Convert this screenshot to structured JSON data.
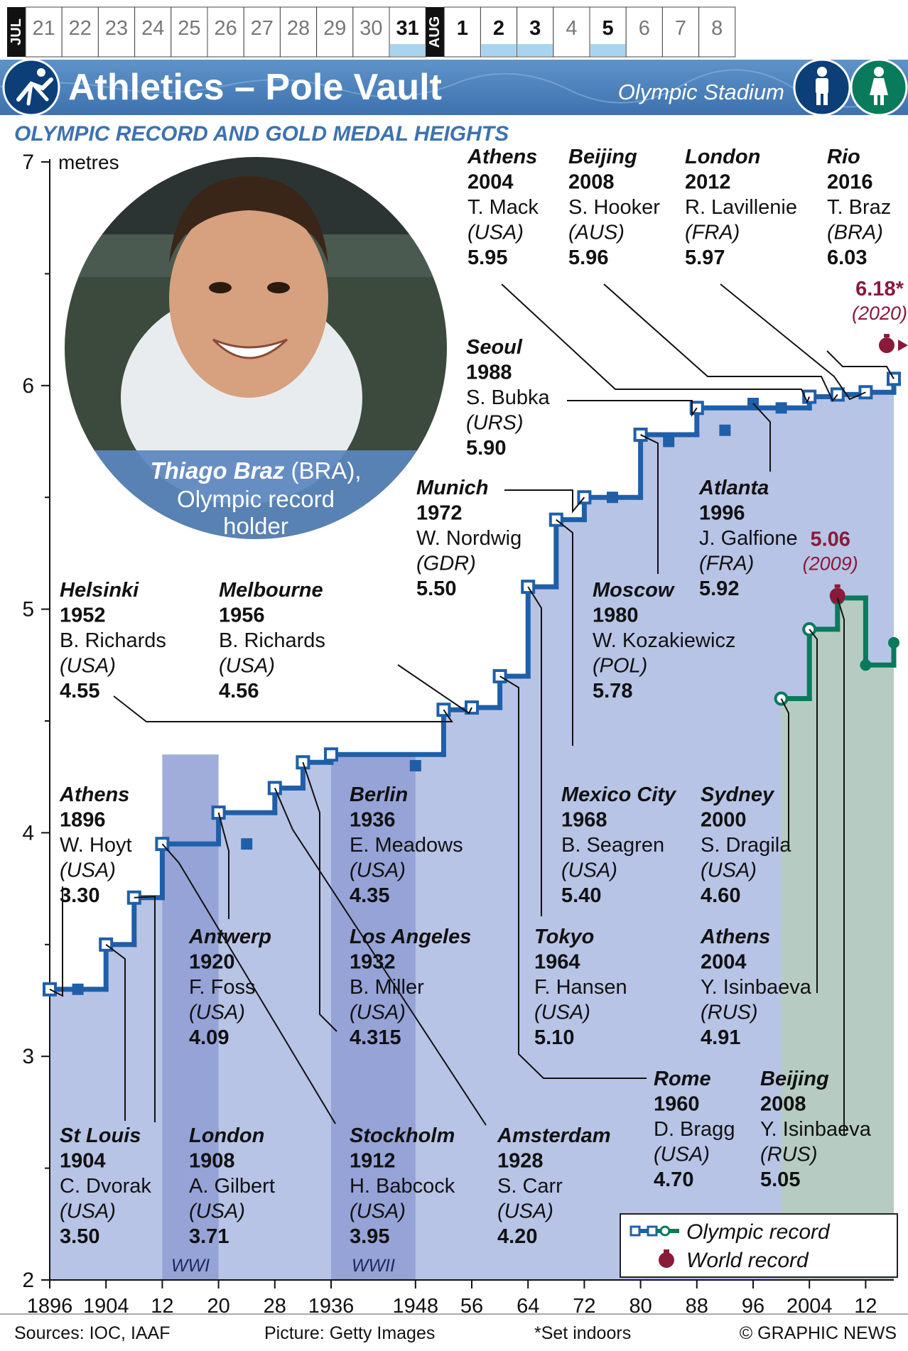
{
  "calendar": {
    "month1": "JUL",
    "month2": "AUG",
    "days1": [
      {
        "label": "21",
        "bold": false,
        "bar": false
      },
      {
        "label": "22",
        "bold": false,
        "bar": false
      },
      {
        "label": "23",
        "bold": false,
        "bar": false
      },
      {
        "label": "24",
        "bold": false,
        "bar": false
      },
      {
        "label": "25",
        "bold": false,
        "bar": false
      },
      {
        "label": "26",
        "bold": false,
        "bar": false
      },
      {
        "label": "27",
        "bold": false,
        "bar": false
      },
      {
        "label": "28",
        "bold": false,
        "bar": false
      },
      {
        "label": "29",
        "bold": false,
        "bar": false
      },
      {
        "label": "30",
        "bold": false,
        "bar": false
      },
      {
        "label": "31",
        "bold": true,
        "bar": true
      }
    ],
    "days2": [
      {
        "label": "1",
        "bold": true,
        "bar": false
      },
      {
        "label": "2",
        "bold": true,
        "bar": true
      },
      {
        "label": "3",
        "bold": true,
        "bar": true
      },
      {
        "label": "4",
        "bold": false,
        "bar": false
      },
      {
        "label": "5",
        "bold": true,
        "bar": true
      },
      {
        "label": "6",
        "bold": false,
        "bar": false
      },
      {
        "label": "7",
        "bold": false,
        "bar": false
      },
      {
        "label": "8",
        "bold": false,
        "bar": false
      }
    ]
  },
  "header": {
    "title": "Athletics – Pole Vault",
    "venue": "Olympic Stadium",
    "sport_icon": "pole-vault-pictogram-icon",
    "men_icon": "man-icon",
    "women_icon": "woman-icon"
  },
  "photo": {
    "caption_name": "Thiago Braz",
    "caption_country": " (BRA),",
    "caption_line2": "Olympic record",
    "caption_line3": "holder"
  },
  "chart_data": {
    "type": "line",
    "title": "OLYMPIC RECORD AND GOLD MEDAL HEIGHTS",
    "ylabel": "metres",
    "ylim": [
      2,
      7
    ],
    "xlim": [
      1896,
      2016
    ],
    "yticks": [
      "2",
      "3",
      "4",
      "5",
      "6",
      "7"
    ],
    "xtick_labels": [
      {
        "x": 1896,
        "label": "1896"
      },
      {
        "x": 1904,
        "label": "1904"
      },
      {
        "x": 1912,
        "label": "12"
      },
      {
        "x": 1920,
        "label": "20"
      },
      {
        "x": 1928,
        "label": "28"
      },
      {
        "x": 1936,
        "label": "1936"
      },
      {
        "x": 1948,
        "label": "1948"
      },
      {
        "x": 1956,
        "label": "56"
      },
      {
        "x": 1964,
        "label": "64"
      },
      {
        "x": 1972,
        "label": "72"
      },
      {
        "x": 1980,
        "label": "80"
      },
      {
        "x": 1988,
        "label": "88"
      },
      {
        "x": 1996,
        "label": "96"
      },
      {
        "x": 2004,
        "label": "2004"
      },
      {
        "x": 2012,
        "label": "12"
      }
    ],
    "war_bands": [
      {
        "label": "WWI",
        "from": 1912,
        "to": 1920
      },
      {
        "label": "WWII",
        "from": 1936,
        "to": 1948
      }
    ],
    "series": [
      {
        "name": "Olympic record",
        "color": "#1f5fa8",
        "record_years": [
          1896,
          1904,
          1908,
          1912,
          1920,
          1928,
          1932,
          1936,
          1952,
          1956,
          1960,
          1964,
          1968,
          1972,
          1980,
          1988,
          2000,
          2004,
          2008,
          2012,
          2016
        ],
        "record_values": [
          3.3,
          3.5,
          3.71,
          3.95,
          4.09,
          4.2,
          4.315,
          4.35,
          4.55,
          4.56,
          4.7,
          5.1,
          5.4,
          5.5,
          5.78,
          5.9,
          5.9,
          5.95,
          5.96,
          5.97,
          6.03
        ],
        "gold_years": [
          1900,
          1924,
          1948,
          1976,
          1984,
          1992,
          1996,
          2000
        ],
        "gold_values": [
          3.3,
          3.95,
          4.3,
          5.5,
          5.75,
          5.8,
          5.92,
          5.9
        ],
        "dotted_segments": [
          [
            1912,
            1920
          ],
          [
            1936,
            1948
          ]
        ]
      },
      {
        "name": "Olympic record",
        "color": "#0a7a5c",
        "record_years": [
          2000,
          2004,
          2008
        ],
        "record_values": [
          4.6,
          4.91,
          5.05
        ],
        "gold_years": [
          2012,
          2016
        ],
        "gold_values": [
          4.75,
          4.85
        ]
      }
    ],
    "world_records": [
      {
        "x": 2016,
        "y": 6.18,
        "label": "6.18*",
        "sublabel": "(2020)",
        "color": "#8a1a3a"
      },
      {
        "x": 2009,
        "y": 5.06,
        "label": "5.06",
        "sublabel": "(2009)",
        "color": "#8a1a3a"
      }
    ],
    "annotations": [
      {
        "city": "Athens",
        "year": "1896",
        "name": "W. Hoyt",
        "country": "(USA)",
        "height": "3.30",
        "x": 1896,
        "y": 3.3
      },
      {
        "city": "St Louis",
        "year": "1904",
        "name": "C. Dvorak",
        "country": "(USA)",
        "height": "3.50",
        "x": 1904,
        "y": 3.5
      },
      {
        "city": "London",
        "year": "1908",
        "name": "A. Gilbert",
        "country": "(USA)",
        "height": "3.71",
        "x": 1908,
        "y": 3.71
      },
      {
        "city": "Stockholm",
        "year": "1912",
        "name": "H. Babcock",
        "country": "(USA)",
        "height": "3.95",
        "x": 1912,
        "y": 3.95
      },
      {
        "city": "Antwerp",
        "year": "1920",
        "name": "F. Foss",
        "country": "(USA)",
        "height": "4.09",
        "x": 1920,
        "y": 4.09
      },
      {
        "city": "Amsterdam",
        "year": "1928",
        "name": "S. Carr",
        "country": "(USA)",
        "height": "4.20",
        "x": 1928,
        "y": 4.2
      },
      {
        "city": "Los Angeles",
        "year": "1932",
        "name": "B. Miller",
        "country": "(USA)",
        "height": "4.315",
        "x": 1932,
        "y": 4.315
      },
      {
        "city": "Berlin",
        "year": "1936",
        "name": "E. Meadows",
        "country": "(USA)",
        "height": "4.35",
        "x": 1936,
        "y": 4.35
      },
      {
        "city": "Helsinki",
        "year": "1952",
        "name": "B. Richards",
        "country": "(USA)",
        "height": "4.55",
        "x": 1952,
        "y": 4.55
      },
      {
        "city": "Melbourne",
        "year": "1956",
        "name": "B. Richards",
        "country": "(USA)",
        "height": "4.56",
        "x": 1956,
        "y": 4.56
      },
      {
        "city": "Rome",
        "year": "1960",
        "name": "D. Bragg",
        "country": "(USA)",
        "height": "4.70",
        "x": 1960,
        "y": 4.7
      },
      {
        "city": "Tokyo",
        "year": "1964",
        "name": "F. Hansen",
        "country": "(USA)",
        "height": "5.10",
        "x": 1964,
        "y": 5.1
      },
      {
        "city": "Mexico City",
        "year": "1968",
        "name": "B. Seagren",
        "country": "(USA)",
        "height": "5.40",
        "x": 1968,
        "y": 5.4
      },
      {
        "city": "Munich",
        "year": "1972",
        "name": "W. Nordwig",
        "country": "(GDR)",
        "height": "5.50",
        "x": 1972,
        "y": 5.5
      },
      {
        "city": "Moscow",
        "year": "1980",
        "name": "W. Kozakiewicz",
        "country": "(POL)",
        "height": "5.78",
        "x": 1980,
        "y": 5.78
      },
      {
        "city": "Seoul",
        "year": "1988",
        "name": "S. Bubka",
        "country": "(URS)",
        "height": "5.90",
        "x": 1988,
        "y": 5.9
      },
      {
        "city": "Atlanta",
        "year": "1996",
        "name": "J. Galfione",
        "country": "(FRA)",
        "height": "5.92",
        "x": 1996,
        "y": 5.92
      },
      {
        "city": "Athens",
        "year": "2004",
        "name": "T. Mack",
        "country": "(USA)",
        "height": "5.95",
        "x": 2004,
        "y": 5.95
      },
      {
        "city": "Beijing",
        "year": "2008",
        "name": "S. Hooker",
        "country": "(AUS)",
        "height": "5.96",
        "x": 2008,
        "y": 5.96
      },
      {
        "city": "London",
        "year": "2012",
        "name": "R. Lavillenie",
        "country": "(FRA)",
        "height": "5.97",
        "x": 2012,
        "y": 5.97
      },
      {
        "city": "Rio",
        "year": "2016",
        "name": "T. Braz",
        "country": "(BRA)",
        "height": "6.03",
        "x": 2016,
        "y": 6.03
      },
      {
        "city": "Sydney",
        "year": "2000",
        "name": "S. Dragila",
        "country": "(USA)",
        "height": "4.60",
        "x": 2000,
        "y": 4.6
      },
      {
        "city": "Athens",
        "year": "2004",
        "name": "Y. Isinbaeva",
        "country": "(RUS)",
        "height": "4.91",
        "x": 2004,
        "y": 4.91
      },
      {
        "city": "Beijing",
        "year": "2008",
        "name": "Y. Isinbaeva",
        "country": "(RUS)",
        "height": "5.05",
        "x": 2008,
        "y": 5.05
      }
    ],
    "legend": {
      "placement": "bottom-right",
      "entries": [
        "Olympic record",
        "World record"
      ]
    }
  },
  "footer": {
    "sources": "Sources: IOC, IAAF",
    "picture": "Picture: Getty Images",
    "note": "*Set indoors",
    "credit": "© GRAPHIC NEWS"
  }
}
